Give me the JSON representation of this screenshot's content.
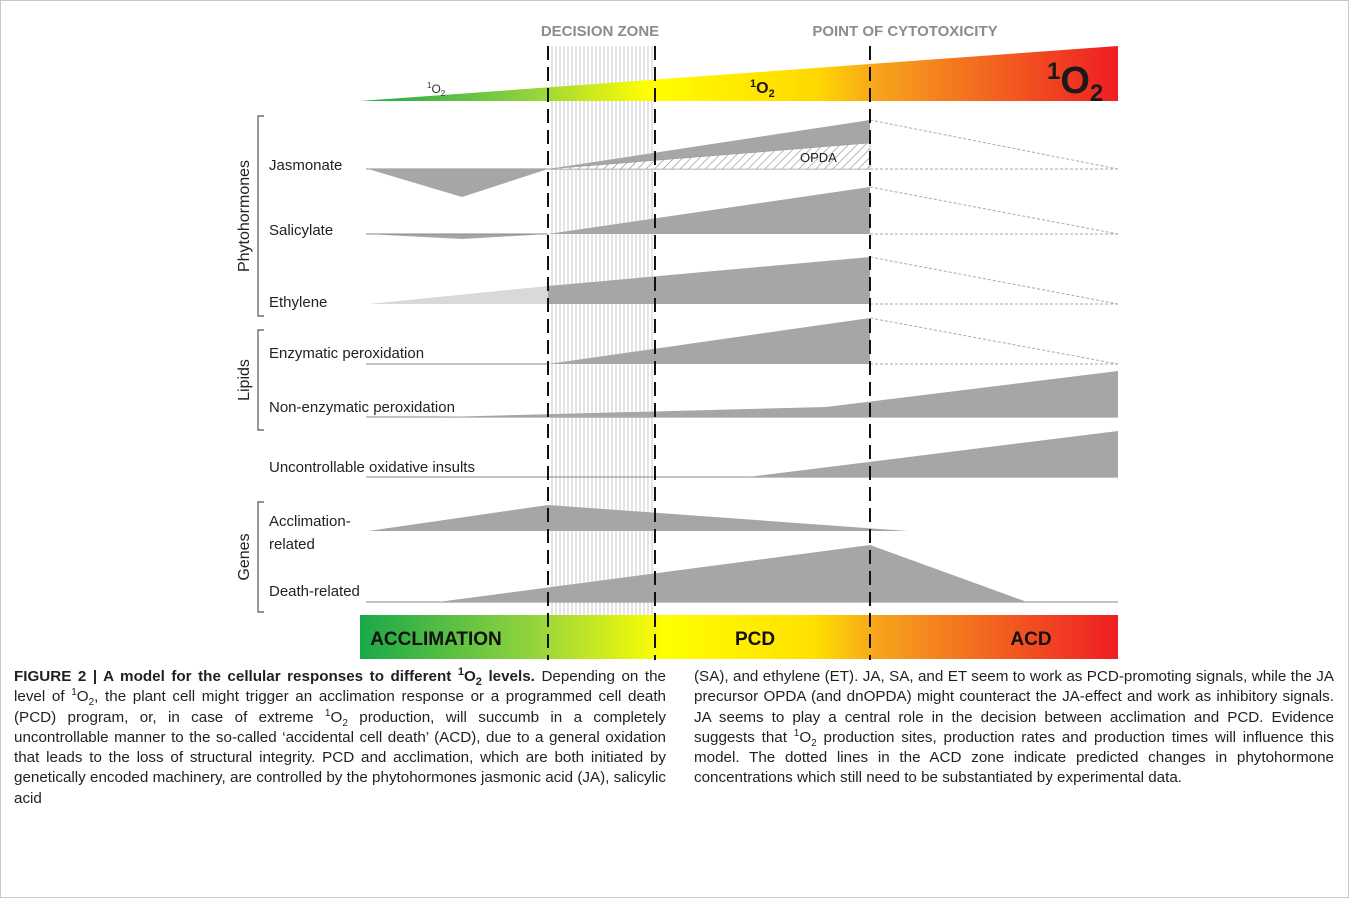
{
  "figure": {
    "zone_labels": {
      "decision": "DECISION ZONE",
      "cytotoxicity": "POINT OF CYTOTOXICITY"
    },
    "singlet_oxygen": {
      "base": "O",
      "superscript": "1",
      "subscript": "2"
    },
    "groups": {
      "phytohormones": "Phytohormones",
      "lipids": "Lipids",
      "genes": "Genes"
    },
    "rows": {
      "jasmonate": "Jasmonate",
      "opda": "OPDA",
      "salicylate": "Salicylate",
      "ethylene": "Ethylene",
      "enzymatic": "Enzymatic peroxidation",
      "nonenzymatic": "Non-enzymatic peroxidation",
      "uncontrollable": "Uncontrollable oxidative insults",
      "acclimation_line1": "Acclimation-",
      "acclimation_line2": "related",
      "death": "Death-related"
    },
    "outcomes": {
      "acclimation": "ACCLIMATION",
      "pcd": "PCD",
      "acd": "ACD"
    },
    "colors": {
      "green": "#1aa84a",
      "yellow": "#ffff00",
      "orange": "#f7a51c",
      "red": "#ee1d23",
      "shape_gray": "#a6a6a6",
      "light_gray": "#d9d9d9"
    }
  },
  "caption": {
    "label": "FIGURE 2 | A model for the cellular responses to different ",
    "title_sup": "1",
    "title_o": "O",
    "title_sub": "2",
    "title_end": " levels.",
    "p1": "Depending on the level of ",
    "p1_sup": "1",
    "p1_o": "O",
    "p1_sub": "2",
    "p2": ", the plant cell might trigger an acclimation response or a programmed cell death (PCD) program, or, in case of extreme ",
    "p2_sup": "1",
    "p2_o": "O",
    "p2_sub": "2",
    "p3": " production, will succumb in a completely uncontrollable manner to the so-called ‘accidental cell death’ (ACD), due to a general oxidation that leads to the loss of structural integrity. PCD and acclimation, which are both initiated by genetically encoded machinery, are controlled by the phytohormones jasmonic acid (JA), salicylic acid",
    "p4": "(SA), and ethylene (ET). JA, SA, and ET seem to work as PCD-promoting signals, while the JA precursor OPDA (and dnOPDA) might counteract the JA-effect and work as inhibitory signals. JA seems to play a central role in the decision between acclimation and PCD. Evidence suggests that ",
    "p4_sup": "1",
    "p4_o": "O",
    "p4_sub": "2",
    "p5": " production sites, production rates and production times will influence this model. The dotted lines in the ACD zone indicate predicted changes in phytohormone concentrations which still need to be substantiated by experimental data."
  }
}
